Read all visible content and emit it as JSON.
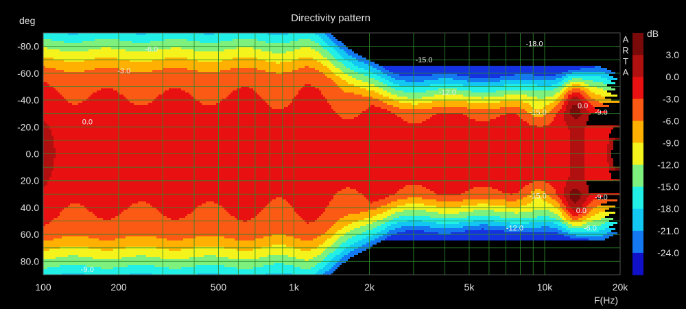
{
  "chart_data": {
    "type": "heatmap",
    "title": "Directivity pattern",
    "ylabel": "deg",
    "xlabel": "F(Hz)",
    "colorbar_label": "dB",
    "watermark": [
      "A",
      "R",
      "T",
      "A"
    ],
    "x_scale": "log",
    "xlim": [
      100,
      20000
    ],
    "ylim": [
      -90,
      90
    ],
    "x_ticks": [
      {
        "value": 100,
        "label": "100"
      },
      {
        "value": 200,
        "label": "200"
      },
      {
        "value": 500,
        "label": "500"
      },
      {
        "value": 1000,
        "label": "1k"
      },
      {
        "value": 2000,
        "label": "2k"
      },
      {
        "value": 5000,
        "label": "5k"
      },
      {
        "value": 10000,
        "label": "10k"
      },
      {
        "value": 20000,
        "label": "20k"
      }
    ],
    "y_ticks": [
      {
        "value": -80,
        "label": "-80.0"
      },
      {
        "value": -60,
        "label": "-60.0"
      },
      {
        "value": -40,
        "label": "-40.0"
      },
      {
        "value": -20,
        "label": "-20.0"
      },
      {
        "value": 0,
        "label": "0.0"
      },
      {
        "value": 20,
        "label": "20.0"
      },
      {
        "value": 40,
        "label": "40.0"
      },
      {
        "value": 60,
        "label": "60.0"
      },
      {
        "value": 80,
        "label": "80.0"
      }
    ],
    "color_levels": [
      {
        "value": 3,
        "label": "3.0",
        "color": "#b01010"
      },
      {
        "value": 0,
        "label": "0.0",
        "color": "#e81010"
      },
      {
        "value": -3,
        "label": "-3.0",
        "color": "#fa5a14"
      },
      {
        "value": -6,
        "label": "-6.0",
        "color": "#ffb000"
      },
      {
        "value": -9,
        "label": "-9.0",
        "color": "#f4f41c"
      },
      {
        "value": -12,
        "label": "-12.0",
        "color": "#7ef07e"
      },
      {
        "value": -15,
        "label": "-15.0",
        "color": "#22f0e6"
      },
      {
        "value": -18,
        "label": "-18.0",
        "color": "#12c8f2"
      },
      {
        "value": -21,
        "label": "-21.0",
        "color": "#1478f0"
      },
      {
        "value": -24,
        "label": "-24.0",
        "color": "#1432e0"
      }
    ],
    "top_color": "#7a0a0a",
    "bottom_color": "#1010c8",
    "contour_labels": [
      {
        "text": "0.0",
        "freq": 150,
        "angle": -24
      },
      {
        "text": "-3.0",
        "freq": 210,
        "angle": -62
      },
      {
        "text": "-6.0",
        "freq": 270,
        "angle": -78
      },
      {
        "text": "-15.0",
        "freq": 3300,
        "angle": -70
      },
      {
        "text": "-18.0",
        "freq": 9100,
        "angle": -82
      },
      {
        "text": "-12.0",
        "freq": 4100,
        "angle": -46
      },
      {
        "text": "-15.0",
        "freq": 9400,
        "angle": -31
      },
      {
        "text": "0.0",
        "freq": 14200,
        "angle": -36
      },
      {
        "text": "-9.0",
        "freq": 16800,
        "angle": -31
      },
      {
        "text": "-15.0",
        "freq": 9400,
        "angle": 31
      },
      {
        "text": "0.0",
        "freq": 14000,
        "angle": 42
      },
      {
        "text": "-9.0",
        "freq": 16800,
        "angle": 32
      },
      {
        "text": "-6.0",
        "freq": 15200,
        "angle": 55
      },
      {
        "text": "-12.0",
        "freq": 7600,
        "angle": 55
      },
      {
        "text": "-9.0",
        "freq": 150,
        "angle": 86
      }
    ]
  }
}
